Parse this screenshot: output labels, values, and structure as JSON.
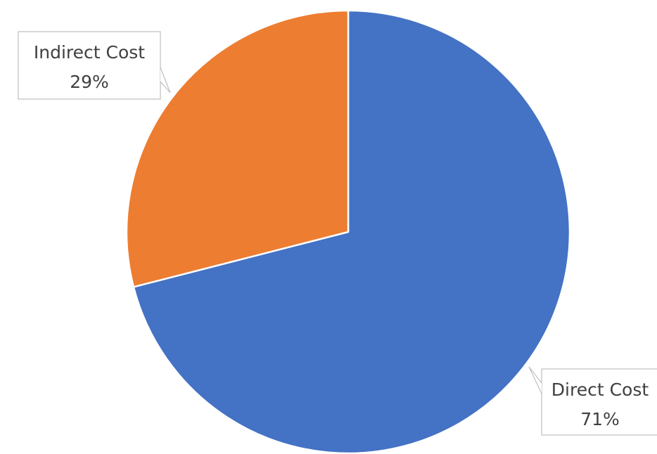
{
  "chart_data": {
    "type": "pie",
    "title": "",
    "start_angle_deg": 0,
    "direction": "clockwise",
    "slices": [
      {
        "label": "Direct Cost",
        "value": 71,
        "percent_label": "71%",
        "color": "#4472C4"
      },
      {
        "label": "Indirect Cost",
        "value": 29,
        "percent_label": "29%",
        "color": "#ED7D31"
      }
    ],
    "slice_border_color": "#FFFFFF",
    "label_style": "callout",
    "callout_border_color": "#BFBFBF",
    "legend": "none"
  }
}
